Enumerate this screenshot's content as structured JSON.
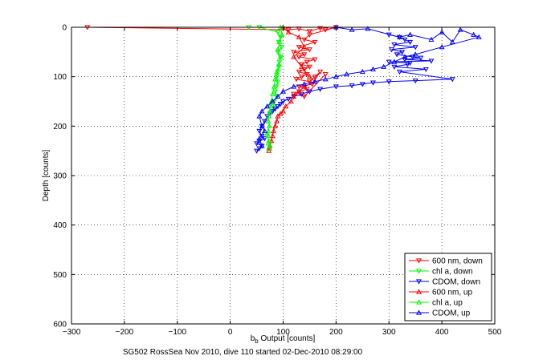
{
  "chart_data": {
    "type": "scatter",
    "title": "",
    "xlabel": "b_b Output [counts]",
    "ylabel": "Depth [counts]",
    "footer": "SG502 RossSea Nov 2010, dive 110 started 02-Dec-2010 08:29:00",
    "xlim": [
      -300,
      500
    ],
    "ylim": [
      600,
      0
    ],
    "xticks": [
      -300,
      -200,
      -100,
      0,
      100,
      200,
      300,
      400,
      500
    ],
    "yticks": [
      0,
      100,
      200,
      300,
      400,
      500,
      600
    ],
    "grid": true,
    "legend_position": "bottom-right",
    "series": [
      {
        "name": "600 nm, down",
        "color": "#ff0000",
        "marker": "triangle-down",
        "x": [
          -270,
          110,
          130,
          150,
          170,
          180,
          200,
          150,
          140,
          160,
          130,
          150,
          120,
          140,
          130,
          160,
          145,
          135,
          150,
          140,
          130,
          145,
          135,
          125,
          150,
          160,
          170,
          155,
          130,
          145,
          130,
          120,
          140,
          180
        ],
        "y": [
          0,
          5,
          3,
          8,
          2,
          5,
          0,
          15,
          25,
          30,
          40,
          45,
          50,
          55,
          60,
          65,
          70,
          75,
          80,
          85,
          90,
          95,
          100,
          105,
          110,
          100,
          90,
          115,
          120,
          125,
          130,
          135,
          140,
          95
        ]
      },
      {
        "name": "chl a, down",
        "color": "#00ff00",
        "marker": "triangle-down",
        "x": [
          35,
          55,
          90,
          95,
          92,
          97,
          90,
          95,
          93,
          92,
          90,
          88,
          90,
          87,
          85,
          88,
          83,
          82,
          80
        ],
        "y": [
          0,
          0,
          10,
          20,
          30,
          40,
          50,
          60,
          70,
          80,
          90,
          100,
          110,
          120,
          130,
          140,
          150,
          160,
          170
        ]
      },
      {
        "name": "CDOM, down",
        "color": "#0000ff",
        "marker": "triangle-down",
        "x": [
          300,
          320,
          330,
          340,
          310,
          350,
          305,
          325,
          315,
          345,
          360,
          330,
          380,
          300,
          340,
          335,
          310,
          370,
          320,
          420,
          350,
          300,
          270,
          250,
          230,
          200,
          170,
          150,
          135,
          120,
          110,
          100,
          95,
          90,
          85,
          80,
          75,
          70,
          65,
          60,
          55,
          60,
          65,
          55,
          50,
          60,
          55,
          50
        ],
        "y": [
          15,
          20,
          25,
          30,
          35,
          40,
          45,
          50,
          55,
          60,
          62,
          65,
          68,
          70,
          72,
          75,
          80,
          85,
          90,
          105,
          108,
          110,
          112,
          115,
          118,
          120,
          125,
          130,
          135,
          140,
          145,
          150,
          155,
          160,
          165,
          170,
          175,
          180,
          190,
          200,
          210,
          220,
          225,
          230,
          235,
          240,
          245,
          250
        ]
      },
      {
        "name": "600 nm, up",
        "color": "#ff0000",
        "marker": "triangle-up",
        "x": [
          100,
          110,
          130,
          140,
          120,
          135,
          150,
          160,
          140,
          130,
          120,
          115,
          105,
          100,
          95,
          90,
          88,
          85,
          82,
          80,
          78,
          75,
          74,
          73
        ],
        "y": [
          0,
          10,
          20,
          40,
          60,
          80,
          100,
          110,
          120,
          130,
          140,
          150,
          160,
          170,
          175,
          180,
          190,
          200,
          210,
          220,
          230,
          240,
          245,
          250
        ]
      },
      {
        "name": "chl a, up",
        "color": "#00ff00",
        "marker": "triangle-up",
        "x": [
          95,
          98,
          93,
          90,
          95,
          92,
          88,
          85,
          83,
          80,
          78,
          76,
          75,
          73,
          72,
          74,
          72,
          70,
          71,
          73,
          72,
          74,
          73
        ],
        "y": [
          0,
          15,
          30,
          45,
          60,
          75,
          90,
          105,
          120,
          135,
          150,
          160,
          170,
          180,
          190,
          200,
          210,
          215,
          220,
          230,
          235,
          240,
          245
        ]
      },
      {
        "name": "CDOM, up",
        "color": "#0000ff",
        "marker": "triangle-up",
        "x": [
          200,
          230,
          260,
          320,
          340,
          380,
          400,
          420,
          435,
          460,
          470,
          400,
          350,
          330,
          310,
          290,
          270,
          250,
          220,
          200,
          180,
          160,
          140,
          120,
          100,
          90,
          80,
          70,
          60,
          55,
          60,
          65,
          55,
          60
        ],
        "y": [
          0,
          5,
          3,
          20,
          15,
          25,
          10,
          30,
          5,
          15,
          20,
          40,
          55,
          60,
          70,
          80,
          85,
          90,
          95,
          100,
          105,
          110,
          115,
          120,
          130,
          140,
          150,
          160,
          170,
          180,
          200,
          210,
          225,
          240
        ]
      }
    ]
  }
}
